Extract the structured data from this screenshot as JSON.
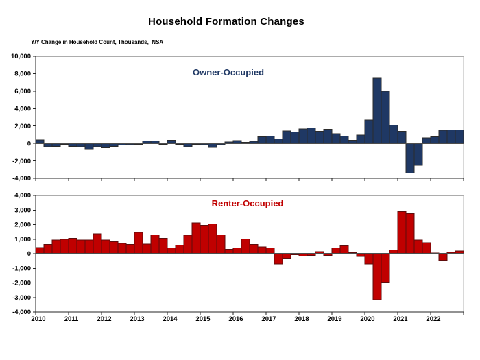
{
  "page": {
    "title": "Household Formation Changes",
    "subtitle": "Y/Y Change in Household Count, Thousands,  NSA"
  },
  "colors": {
    "owner_fill": "#1f3864",
    "owner_border": "#2b2b2b",
    "renter_fill": "#c00000",
    "renter_border": "#5e0d0d",
    "axis": "#262626",
    "frame_light": "#b0b0b0",
    "frame_dark": "#595959",
    "zero_line": "#4d4d4d",
    "text": "#000000"
  },
  "x_years": [
    "2010",
    "2011",
    "2012",
    "2013",
    "2014",
    "2015",
    "2016",
    "2017",
    "2018",
    "2019",
    "2020",
    "2021",
    "2022"
  ],
  "chart_data": [
    {
      "type": "bar",
      "name": "owner",
      "title": "Owner-Occupied",
      "ylabel": "Y/Y Change in Household Count, Thousands, NSA",
      "ylim": [
        -4000,
        10000
      ],
      "grid": false,
      "ytick_values": [
        10000,
        8000,
        6000,
        4000,
        2000,
        0,
        -2000,
        -4000
      ],
      "ytick_labels": [
        "10,000",
        "8,000",
        "6,000",
        "4,000",
        "2,000",
        "0",
        "-2,000",
        "-4,000"
      ],
      "categories": [
        "2010 Q1",
        "2010 Q2",
        "2010 Q3",
        "2010 Q4",
        "2011 Q1",
        "2011 Q2",
        "2011 Q3",
        "2011 Q4",
        "2012 Q1",
        "2012 Q2",
        "2012 Q3",
        "2012 Q4",
        "2013 Q1",
        "2013 Q2",
        "2013 Q3",
        "2013 Q4",
        "2014 Q1",
        "2014 Q2",
        "2014 Q3",
        "2014 Q4",
        "2015 Q1",
        "2015 Q2",
        "2015 Q3",
        "2015 Q4",
        "2016 Q1",
        "2016 Q2",
        "2016 Q3",
        "2016 Q4",
        "2017 Q1",
        "2017 Q2",
        "2017 Q3",
        "2017 Q4",
        "2018 Q1",
        "2018 Q2",
        "2018 Q3",
        "2018 Q4",
        "2019 Q1",
        "2019 Q2",
        "2019 Q3",
        "2019 Q4",
        "2020 Q1",
        "2020 Q2",
        "2020 Q3",
        "2020 Q4",
        "2021 Q1",
        "2021 Q2",
        "2021 Q3",
        "2021 Q4",
        "2022 Q1",
        "2022 Q2",
        "2022 Q3",
        "2022 Q4"
      ],
      "values": [
        400,
        -400,
        -350,
        -100,
        -350,
        -400,
        -700,
        -400,
        -500,
        -350,
        -200,
        -150,
        -100,
        300,
        300,
        -100,
        350,
        -100,
        -400,
        -100,
        -150,
        -450,
        -150,
        150,
        340,
        130,
        260,
        760,
        840,
        520,
        1430,
        1300,
        1670,
        1800,
        1400,
        1620,
        1100,
        840,
        370,
        960,
        2700,
        7500,
        6000,
        2100,
        1400,
        -3400,
        -2500,
        650,
        760,
        1490,
        1540,
        1540
      ]
    },
    {
      "type": "bar",
      "name": "renter",
      "title": "Renter-Occupied",
      "ylabel": "Y/Y Change in Household Count, Thousands, NSA",
      "ylim": [
        -4000,
        4000
      ],
      "grid": false,
      "ytick_values": [
        4000,
        3000,
        2000,
        1000,
        0,
        -1000,
        -2000,
        -3000,
        -4000
      ],
      "ytick_labels": [
        "4,000",
        "3,000",
        "2,000",
        "1,000",
        "0",
        "-1,000",
        "-2,000",
        "-3,000",
        "-4,000"
      ],
      "categories": [
        "2010 Q1",
        "2010 Q2",
        "2010 Q3",
        "2010 Q4",
        "2011 Q1",
        "2011 Q2",
        "2011 Q3",
        "2011 Q4",
        "2012 Q1",
        "2012 Q2",
        "2012 Q3",
        "2012 Q4",
        "2013 Q1",
        "2013 Q2",
        "2013 Q3",
        "2013 Q4",
        "2014 Q1",
        "2014 Q2",
        "2014 Q3",
        "2014 Q4",
        "2015 Q1",
        "2015 Q2",
        "2015 Q3",
        "2015 Q4",
        "2016 Q1",
        "2016 Q2",
        "2016 Q3",
        "2016 Q4",
        "2017 Q1",
        "2017 Q2",
        "2017 Q3",
        "2017 Q4",
        "2018 Q1",
        "2018 Q2",
        "2018 Q3",
        "2018 Q4",
        "2019 Q1",
        "2019 Q2",
        "2019 Q3",
        "2019 Q4",
        "2020 Q1",
        "2020 Q2",
        "2020 Q3",
        "2020 Q4",
        "2021 Q1",
        "2021 Q2",
        "2021 Q3",
        "2021 Q4",
        "2022 Q1",
        "2022 Q2",
        "2022 Q3",
        "2022 Q4"
      ],
      "values": [
        420,
        630,
        930,
        980,
        1050,
        950,
        930,
        1370,
        930,
        820,
        700,
        640,
        1460,
        650,
        1290,
        1060,
        390,
        600,
        1260,
        2120,
        1960,
        2040,
        1300,
        310,
        390,
        1020,
        630,
        470,
        390,
        -710,
        -310,
        -60,
        -160,
        -110,
        130,
        -110,
        390,
        550,
        80,
        -190,
        -700,
        -3150,
        -1950,
        250,
        2900,
        2750,
        950,
        750,
        50,
        -450,
        100,
        200
      ]
    }
  ]
}
